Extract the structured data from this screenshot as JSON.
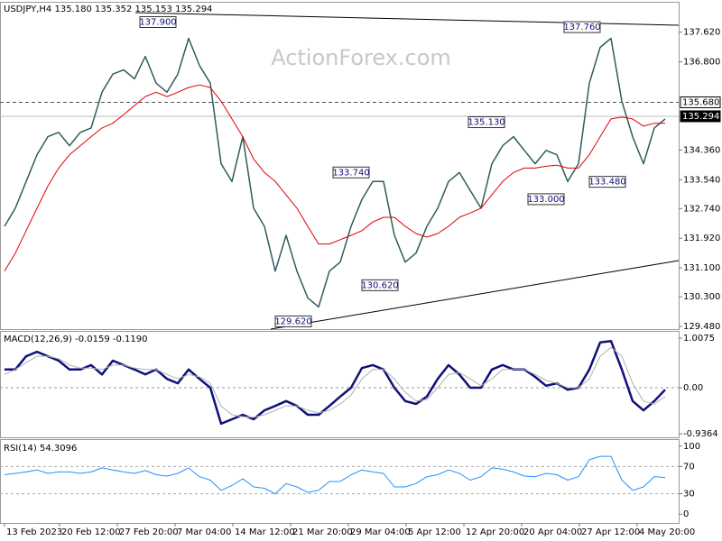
{
  "chart_data": [
    {
      "type": "line",
      "title": "USDJPY,H4  135.180 135.352 135.153 135.294",
      "watermark": "ActionForex.com",
      "x": [
        0,
        6,
        12,
        18,
        24,
        30,
        36,
        42,
        48,
        54,
        60,
        66,
        72,
        78,
        84,
        90,
        96,
        102,
        108,
        114,
        120,
        126,
        132,
        138,
        144,
        150,
        156,
        162,
        168,
        174,
        180,
        186,
        192,
        198,
        204,
        210,
        216,
        222,
        228,
        234,
        240,
        246,
        252,
        258,
        264,
        270,
        276,
        282,
        288,
        294,
        300,
        306,
        312,
        318,
        324,
        330,
        336,
        342,
        348,
        354,
        360,
        366
      ],
      "xlim": [
        -2.5,
        373.5
      ],
      "ylim": [
        129.406,
        138.436
      ],
      "yticks": [
        {
          "value": 137.62,
          "label": "137.620"
        },
        {
          "value": 136.8,
          "label": "136.800"
        },
        {
          "value": 134.36,
          "label": "134.360"
        },
        {
          "value": 133.54,
          "label": "133.540"
        },
        {
          "value": 132.74,
          "label": "132.740"
        },
        {
          "value": 131.92,
          "label": "131.920"
        },
        {
          "value": 131.1,
          "label": "131.100"
        },
        {
          "value": 130.3,
          "label": "130.300"
        },
        {
          "value": 129.48,
          "label": "129.480"
        }
      ],
      "series": [
        {
          "color": "#2f5c5c",
          "values": [
            132.25,
            132.75,
            133.49,
            134.23,
            134.73,
            134.85,
            134.48,
            134.85,
            134.97,
            135.96,
            136.46,
            136.58,
            136.33,
            136.95,
            136.21,
            135.96,
            136.46,
            137.45,
            136.7,
            136.21,
            133.98,
            133.49,
            134.73,
            132.75,
            132.25,
            131.01,
            132.0,
            131.01,
            130.27,
            130.02,
            131.01,
            131.26,
            132.25,
            132.99,
            133.49,
            133.49,
            132.0,
            131.26,
            131.51,
            132.25,
            132.75,
            133.49,
            133.74,
            133.24,
            132.75,
            133.98,
            134.48,
            134.73,
            134.35,
            133.98,
            134.35,
            134.23,
            133.49,
            133.98,
            136.21,
            137.2,
            137.45,
            135.71,
            134.73,
            133.98,
            134.97,
            135.22
          ]
        },
        {
          "color": "#e00000",
          "values": [
            131.01,
            131.51,
            132.13,
            132.75,
            133.36,
            133.86,
            134.23,
            134.48,
            134.73,
            134.97,
            135.1,
            135.34,
            135.59,
            135.84,
            135.96,
            135.84,
            135.96,
            136.09,
            136.16,
            136.09,
            135.71,
            135.22,
            134.73,
            134.11,
            133.74,
            133.49,
            133.12,
            132.75,
            132.25,
            131.76,
            131.76,
            131.88,
            132.0,
            132.13,
            132.37,
            132.5,
            132.5,
            132.25,
            132.05,
            131.95,
            132.05,
            132.25,
            132.5,
            132.62,
            132.75,
            133.12,
            133.49,
            133.74,
            133.86,
            133.86,
            133.91,
            133.94,
            133.86,
            133.86,
            134.23,
            134.73,
            135.22,
            135.27,
            135.22,
            135.02,
            135.1,
            135.1
          ]
        }
      ],
      "levels": [
        {
          "value": 135.68,
          "label": "135.680",
          "dashed": true
        },
        {
          "value": 135.294,
          "label": "135.294",
          "dashed": false
        }
      ],
      "annotations": [
        {
          "x": 85,
          "value": 137.9,
          "label": "137.900"
        },
        {
          "x": 320,
          "value": 137.76,
          "label": "137.760"
        },
        {
          "x": 267,
          "value": 135.13,
          "label": "135.130"
        },
        {
          "x": 192,
          "value": 133.74,
          "label": "133.740"
        },
        {
          "x": 300,
          "value": 133.0,
          "label": "133.000"
        },
        {
          "x": 334,
          "value": 133.48,
          "label": "133.480"
        },
        {
          "x": 208,
          "value": 130.62,
          "label": "130.620"
        },
        {
          "x": 160,
          "value": 129.62,
          "label": "129.620"
        }
      ]
    },
    {
      "type": "line",
      "title": "MACD(12,26,9) -0.0159 -0.1190",
      "x": [
        0,
        6,
        12,
        18,
        24,
        30,
        36,
        42,
        48,
        54,
        60,
        66,
        72,
        78,
        84,
        90,
        96,
        102,
        108,
        114,
        120,
        126,
        132,
        138,
        144,
        150,
        156,
        162,
        168,
        174,
        180,
        186,
        192,
        198,
        204,
        210,
        216,
        222,
        228,
        234,
        240,
        246,
        252,
        258,
        264,
        270,
        276,
        282,
        288,
        294,
        300,
        306,
        312,
        318,
        324,
        330,
        336,
        342,
        348,
        354,
        360,
        366
      ],
      "xlim": [
        -2.5,
        373.5
      ],
      "ylim": [
        -1.007,
        1.136
      ],
      "yticks": [
        1.0075,
        {
          "value": 0,
          "label": "0.00"
        },
        -0.9364
      ],
      "series": [
        {
          "color": "#10107a",
          "values": [
            0.37,
            0.37,
            0.64,
            0.73,
            0.64,
            0.55,
            0.37,
            0.37,
            0.46,
            0.27,
            0.55,
            0.46,
            0.37,
            0.27,
            0.37,
            0.18,
            0.09,
            0.37,
            0.18,
            0,
            -0.73,
            -0.64,
            -0.55,
            -0.64,
            -0.46,
            -0.37,
            -0.27,
            -0.37,
            -0.55,
            -0.55,
            -0.37,
            -0.18,
            0,
            0.4,
            0.46,
            0.37,
            0,
            -0.27,
            -0.33,
            -0.18,
            0.18,
            0.46,
            0.27,
            0,
            0,
            0.37,
            0.46,
            0.37,
            0.37,
            0.22,
            0.04,
            0.09,
            -0.04,
            0,
            0.37,
            0.92,
            0.95,
            0.37,
            -0.27,
            -0.46,
            -0.27,
            -0.04
          ]
        },
        {
          "color": "#b0b0b0",
          "values": [
            0.27,
            0.37,
            0.51,
            0.64,
            0.64,
            0.59,
            0.46,
            0.4,
            0.4,
            0.37,
            0.46,
            0.46,
            0.4,
            0.37,
            0.37,
            0.27,
            0.18,
            0.27,
            0.22,
            0.09,
            -0.37,
            -0.55,
            -0.59,
            -0.6,
            -0.55,
            -0.46,
            -0.37,
            -0.37,
            -0.46,
            -0.51,
            -0.46,
            -0.33,
            -0.15,
            0.18,
            0.37,
            0.37,
            0.18,
            -0.09,
            -0.27,
            -0.24,
            0,
            0.27,
            0.31,
            0.18,
            0.04,
            0.18,
            0.37,
            0.37,
            0.37,
            0.27,
            0.15,
            0.09,
            0,
            0,
            0.18,
            0.64,
            0.82,
            0.64,
            0.09,
            -0.27,
            -0.33,
            -0.18
          ]
        }
      ]
    },
    {
      "type": "line",
      "title": "RSI(14) 54.3096",
      "x": [
        0,
        6,
        12,
        18,
        24,
        30,
        36,
        42,
        48,
        54,
        60,
        66,
        72,
        78,
        84,
        90,
        96,
        102,
        108,
        114,
        120,
        126,
        132,
        138,
        144,
        150,
        156,
        162,
        168,
        174,
        180,
        186,
        192,
        198,
        204,
        210,
        216,
        222,
        228,
        234,
        240,
        246,
        252,
        258,
        264,
        270,
        276,
        282,
        288,
        294,
        300,
        306,
        312,
        318,
        324,
        330,
        336,
        342,
        348,
        354,
        360,
        366
      ],
      "xlim": [
        -2.5,
        373.5
      ],
      "ylim": [
        -13,
        109
      ],
      "yticks": [
        100,
        70,
        30,
        0
      ],
      "dashed_levels": [
        70,
        30
      ],
      "xticks": [
        {
          "value": 0,
          "label": "13 Feb 2023"
        },
        {
          "value": 30.5,
          "label": "20 Feb 12:00"
        },
        {
          "value": 62.5,
          "label": "27 Feb 20:00"
        },
        {
          "value": 94.5,
          "label": "7 Mar 04:00"
        },
        {
          "value": 126.5,
          "label": "14 Mar 12:00"
        },
        {
          "value": 158.5,
          "label": "21 Mar 20:00"
        },
        {
          "value": 190.5,
          "label": "29 Mar 04:00"
        },
        {
          "value": 222.5,
          "label": "5 Apr 12:00"
        },
        {
          "value": 254.5,
          "label": "12 Apr 20:00"
        },
        {
          "value": 286.5,
          "label": "20 Apr 04:00"
        },
        {
          "value": 318.5,
          "label": "27 Apr 12:00"
        },
        {
          "value": 350.5,
          "label": "4 May 20:00"
        }
      ],
      "series": [
        {
          "color": "#1e90ff",
          "values": [
            58,
            60,
            62,
            65,
            60,
            62,
            62,
            60,
            62,
            68,
            65,
            62,
            60,
            64,
            58,
            56,
            60,
            68,
            55,
            50,
            35,
            42,
            52,
            40,
            38,
            30,
            45,
            40,
            32,
            35,
            48,
            48,
            58,
            65,
            62,
            60,
            40,
            40,
            45,
            55,
            58,
            65,
            60,
            50,
            55,
            68,
            66,
            62,
            56,
            55,
            60,
            58,
            50,
            55,
            80,
            85,
            85,
            50,
            35,
            40,
            55,
            54
          ]
        }
      ]
    }
  ]
}
